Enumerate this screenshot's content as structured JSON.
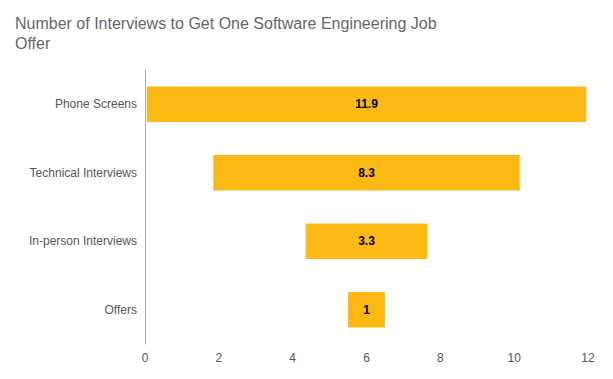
{
  "chart_data": {
    "type": "bar",
    "orientation": "horizontal",
    "title": "Number of Interviews to Get One Software Engineering Job\nOffer",
    "categories": [
      "Phone Screens",
      "Technical Interviews",
      "In-person Interviews",
      "Offers"
    ],
    "values": [
      11.9,
      8.3,
      3.3,
      1
    ],
    "color": "#FDB913",
    "xlim": [
      0,
      12
    ],
    "xticks": [
      0,
      2,
      4,
      6,
      8,
      10,
      12
    ],
    "grid": false,
    "data_labels": true
  }
}
